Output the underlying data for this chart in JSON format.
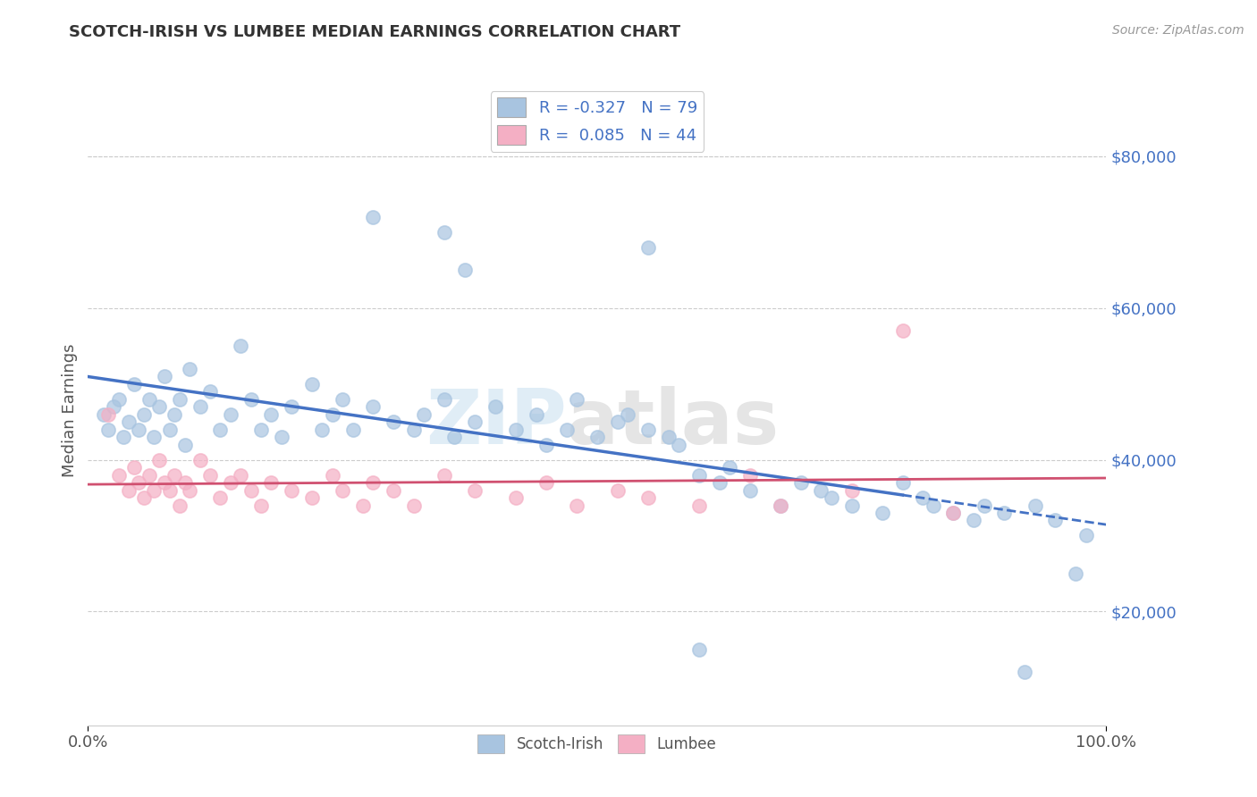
{
  "title": "SCOTCH-IRISH VS LUMBEE MEDIAN EARNINGS CORRELATION CHART",
  "source_text": "Source: ZipAtlas.com",
  "ylabel": "Median Earnings",
  "watermark": "ZIPatlas",
  "xmin": 0.0,
  "xmax": 100.0,
  "ymin": 5000,
  "ymax": 88000,
  "yticks": [
    20000,
    40000,
    60000,
    80000
  ],
  "ytick_labels": [
    "$20,000",
    "$40,000",
    "$60,000",
    "$80,000"
  ],
  "xtick_labels": [
    "0.0%",
    "100.0%"
  ],
  "scotch_irish_color": "#a8c4e0",
  "lumbee_color": "#f4afc4",
  "scotch_irish_line_color": "#4472c4",
  "lumbee_line_color": "#d05070",
  "scotch_irish_R": -0.327,
  "scotch_irish_N": 79,
  "lumbee_R": 0.085,
  "lumbee_N": 44,
  "background_color": "#ffffff",
  "grid_color": "#cccccc",
  "title_color": "#333333",
  "axis_label_color": "#555555",
  "ytick_label_color": "#4472c4",
  "xtick_label_color": "#555555",
  "scotch_irish_x": [
    1.5,
    2.0,
    2.5,
    3.0,
    3.5,
    4.0,
    4.5,
    5.0,
    5.5,
    6.0,
    6.5,
    7.0,
    7.5,
    8.0,
    8.5,
    9.0,
    9.5,
    10.0,
    11.0,
    12.0,
    13.0,
    14.0,
    15.0,
    16.0,
    17.0,
    18.0,
    19.0,
    20.0,
    22.0,
    23.0,
    24.0,
    25.0,
    26.0,
    28.0,
    30.0,
    32.0,
    33.0,
    35.0,
    36.0,
    37.0,
    38.0,
    40.0,
    42.0,
    44.0,
    45.0,
    47.0,
    48.0,
    50.0,
    52.0,
    53.0,
    55.0,
    57.0,
    58.0,
    60.0,
    62.0,
    63.0,
    65.0,
    68.0,
    70.0,
    72.0,
    73.0,
    75.0,
    78.0,
    80.0,
    82.0,
    83.0,
    85.0,
    87.0,
    88.0,
    90.0,
    92.0,
    93.0,
    95.0,
    97.0,
    98.0,
    60.0,
    35.0,
    55.0,
    28.0
  ],
  "scotch_irish_y": [
    46000,
    44000,
    47000,
    48000,
    43000,
    45000,
    50000,
    44000,
    46000,
    48000,
    43000,
    47000,
    51000,
    44000,
    46000,
    48000,
    42000,
    52000,
    47000,
    49000,
    44000,
    46000,
    55000,
    48000,
    44000,
    46000,
    43000,
    47000,
    50000,
    44000,
    46000,
    48000,
    44000,
    47000,
    45000,
    44000,
    46000,
    48000,
    43000,
    65000,
    45000,
    47000,
    44000,
    46000,
    42000,
    44000,
    48000,
    43000,
    45000,
    46000,
    44000,
    43000,
    42000,
    38000,
    37000,
    39000,
    36000,
    34000,
    37000,
    36000,
    35000,
    34000,
    33000,
    37000,
    35000,
    34000,
    33000,
    32000,
    34000,
    33000,
    12000,
    34000,
    32000,
    25000,
    30000,
    15000,
    70000,
    68000,
    72000
  ],
  "lumbee_x": [
    2.0,
    3.0,
    4.0,
    4.5,
    5.0,
    5.5,
    6.0,
    6.5,
    7.0,
    7.5,
    8.0,
    8.5,
    9.0,
    9.5,
    10.0,
    11.0,
    12.0,
    13.0,
    14.0,
    15.0,
    16.0,
    17.0,
    18.0,
    20.0,
    22.0,
    24.0,
    25.0,
    27.0,
    28.0,
    30.0,
    32.0,
    35.0,
    38.0,
    42.0,
    45.0,
    48.0,
    52.0,
    55.0,
    60.0,
    65.0,
    68.0,
    75.0,
    80.0,
    85.0
  ],
  "lumbee_y": [
    46000,
    38000,
    36000,
    39000,
    37000,
    35000,
    38000,
    36000,
    40000,
    37000,
    36000,
    38000,
    34000,
    37000,
    36000,
    40000,
    38000,
    35000,
    37000,
    38000,
    36000,
    34000,
    37000,
    36000,
    35000,
    38000,
    36000,
    34000,
    37000,
    36000,
    34000,
    38000,
    36000,
    35000,
    37000,
    34000,
    36000,
    35000,
    34000,
    38000,
    34000,
    36000,
    57000,
    33000
  ]
}
